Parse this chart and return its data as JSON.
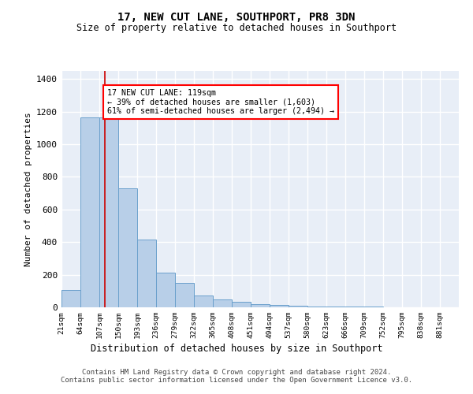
{
  "title": "17, NEW CUT LANE, SOUTHPORT, PR8 3DN",
  "subtitle": "Size of property relative to detached houses in Southport",
  "xlabel": "Distribution of detached houses by size in Southport",
  "ylabel": "Number of detached properties",
  "bar_labels": [
    "21sqm",
    "64sqm",
    "107sqm",
    "150sqm",
    "193sqm",
    "236sqm",
    "279sqm",
    "322sqm",
    "365sqm",
    "408sqm",
    "451sqm",
    "494sqm",
    "537sqm",
    "580sqm",
    "623sqm",
    "666sqm",
    "709sqm",
    "752sqm",
    "795sqm",
    "838sqm",
    "881sqm"
  ],
  "bar_heights": [
    108,
    1163,
    1163,
    730,
    418,
    215,
    152,
    72,
    48,
    32,
    20,
    15,
    10,
    5,
    5,
    3,
    3,
    2,
    2,
    1,
    1
  ],
  "bar_color": "#b8cfe8",
  "bar_edge_color": "#6aa0cc",
  "background_color": "#e8eef7",
  "grid_color": "#d0d8e8",
  "vline_x": 119,
  "vline_color": "#cc0000",
  "annotation_text": "17 NEW CUT LANE: 119sqm\n← 39% of detached houses are smaller (1,603)\n61% of semi-detached houses are larger (2,494) →",
  "footer": "Contains HM Land Registry data © Crown copyright and database right 2024.\nContains public sector information licensed under the Open Government Licence v3.0.",
  "ylim": [
    0,
    1450
  ],
  "bin_edges": [
    21,
    64,
    107,
    150,
    193,
    236,
    279,
    322,
    365,
    408,
    451,
    494,
    537,
    580,
    623,
    666,
    709,
    752,
    795,
    838,
    881,
    924
  ],
  "yticks": [
    0,
    200,
    400,
    600,
    800,
    1000,
    1200,
    1400
  ]
}
